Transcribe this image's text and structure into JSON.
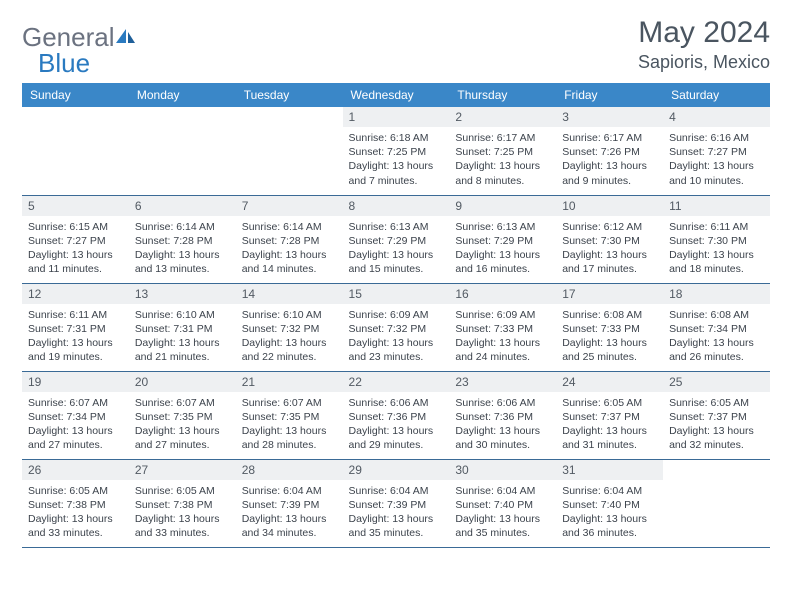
{
  "logo": {
    "text1": "General",
    "text2": "Blue"
  },
  "title": "May 2024",
  "location": "Sapioris, Mexico",
  "colors": {
    "header_bg": "#3a87c8",
    "header_text": "#ffffff",
    "daynum_bg": "#eef0f2",
    "text": "#3c434c",
    "row_border": "#3a6a96",
    "logo_gray": "#6b7280",
    "logo_blue": "#2a7ac0"
  },
  "weekdays": [
    "Sunday",
    "Monday",
    "Tuesday",
    "Wednesday",
    "Thursday",
    "Friday",
    "Saturday"
  ],
  "weeks": [
    [
      null,
      null,
      null,
      {
        "d": "1",
        "sr": "6:18 AM",
        "ss": "7:25 PM",
        "dl": "13 hours and 7 minutes."
      },
      {
        "d": "2",
        "sr": "6:17 AM",
        "ss": "7:25 PM",
        "dl": "13 hours and 8 minutes."
      },
      {
        "d": "3",
        "sr": "6:17 AM",
        "ss": "7:26 PM",
        "dl": "13 hours and 9 minutes."
      },
      {
        "d": "4",
        "sr": "6:16 AM",
        "ss": "7:27 PM",
        "dl": "13 hours and 10 minutes."
      }
    ],
    [
      {
        "d": "5",
        "sr": "6:15 AM",
        "ss": "7:27 PM",
        "dl": "13 hours and 11 minutes."
      },
      {
        "d": "6",
        "sr": "6:14 AM",
        "ss": "7:28 PM",
        "dl": "13 hours and 13 minutes."
      },
      {
        "d": "7",
        "sr": "6:14 AM",
        "ss": "7:28 PM",
        "dl": "13 hours and 14 minutes."
      },
      {
        "d": "8",
        "sr": "6:13 AM",
        "ss": "7:29 PM",
        "dl": "13 hours and 15 minutes."
      },
      {
        "d": "9",
        "sr": "6:13 AM",
        "ss": "7:29 PM",
        "dl": "13 hours and 16 minutes."
      },
      {
        "d": "10",
        "sr": "6:12 AM",
        "ss": "7:30 PM",
        "dl": "13 hours and 17 minutes."
      },
      {
        "d": "11",
        "sr": "6:11 AM",
        "ss": "7:30 PM",
        "dl": "13 hours and 18 minutes."
      }
    ],
    [
      {
        "d": "12",
        "sr": "6:11 AM",
        "ss": "7:31 PM",
        "dl": "13 hours and 19 minutes."
      },
      {
        "d": "13",
        "sr": "6:10 AM",
        "ss": "7:31 PM",
        "dl": "13 hours and 21 minutes."
      },
      {
        "d": "14",
        "sr": "6:10 AM",
        "ss": "7:32 PM",
        "dl": "13 hours and 22 minutes."
      },
      {
        "d": "15",
        "sr": "6:09 AM",
        "ss": "7:32 PM",
        "dl": "13 hours and 23 minutes."
      },
      {
        "d": "16",
        "sr": "6:09 AM",
        "ss": "7:33 PM",
        "dl": "13 hours and 24 minutes."
      },
      {
        "d": "17",
        "sr": "6:08 AM",
        "ss": "7:33 PM",
        "dl": "13 hours and 25 minutes."
      },
      {
        "d": "18",
        "sr": "6:08 AM",
        "ss": "7:34 PM",
        "dl": "13 hours and 26 minutes."
      }
    ],
    [
      {
        "d": "19",
        "sr": "6:07 AM",
        "ss": "7:34 PM",
        "dl": "13 hours and 27 minutes."
      },
      {
        "d": "20",
        "sr": "6:07 AM",
        "ss": "7:35 PM",
        "dl": "13 hours and 27 minutes."
      },
      {
        "d": "21",
        "sr": "6:07 AM",
        "ss": "7:35 PM",
        "dl": "13 hours and 28 minutes."
      },
      {
        "d": "22",
        "sr": "6:06 AM",
        "ss": "7:36 PM",
        "dl": "13 hours and 29 minutes."
      },
      {
        "d": "23",
        "sr": "6:06 AM",
        "ss": "7:36 PM",
        "dl": "13 hours and 30 minutes."
      },
      {
        "d": "24",
        "sr": "6:05 AM",
        "ss": "7:37 PM",
        "dl": "13 hours and 31 minutes."
      },
      {
        "d": "25",
        "sr": "6:05 AM",
        "ss": "7:37 PM",
        "dl": "13 hours and 32 minutes."
      }
    ],
    [
      {
        "d": "26",
        "sr": "6:05 AM",
        "ss": "7:38 PM",
        "dl": "13 hours and 33 minutes."
      },
      {
        "d": "27",
        "sr": "6:05 AM",
        "ss": "7:38 PM",
        "dl": "13 hours and 33 minutes."
      },
      {
        "d": "28",
        "sr": "6:04 AM",
        "ss": "7:39 PM",
        "dl": "13 hours and 34 minutes."
      },
      {
        "d": "29",
        "sr": "6:04 AM",
        "ss": "7:39 PM",
        "dl": "13 hours and 35 minutes."
      },
      {
        "d": "30",
        "sr": "6:04 AM",
        "ss": "7:40 PM",
        "dl": "13 hours and 35 minutes."
      },
      {
        "d": "31",
        "sr": "6:04 AM",
        "ss": "7:40 PM",
        "dl": "13 hours and 36 minutes."
      },
      null
    ]
  ],
  "labels": {
    "sunrise": "Sunrise: ",
    "sunset": "Sunset: ",
    "daylight": "Daylight: "
  }
}
